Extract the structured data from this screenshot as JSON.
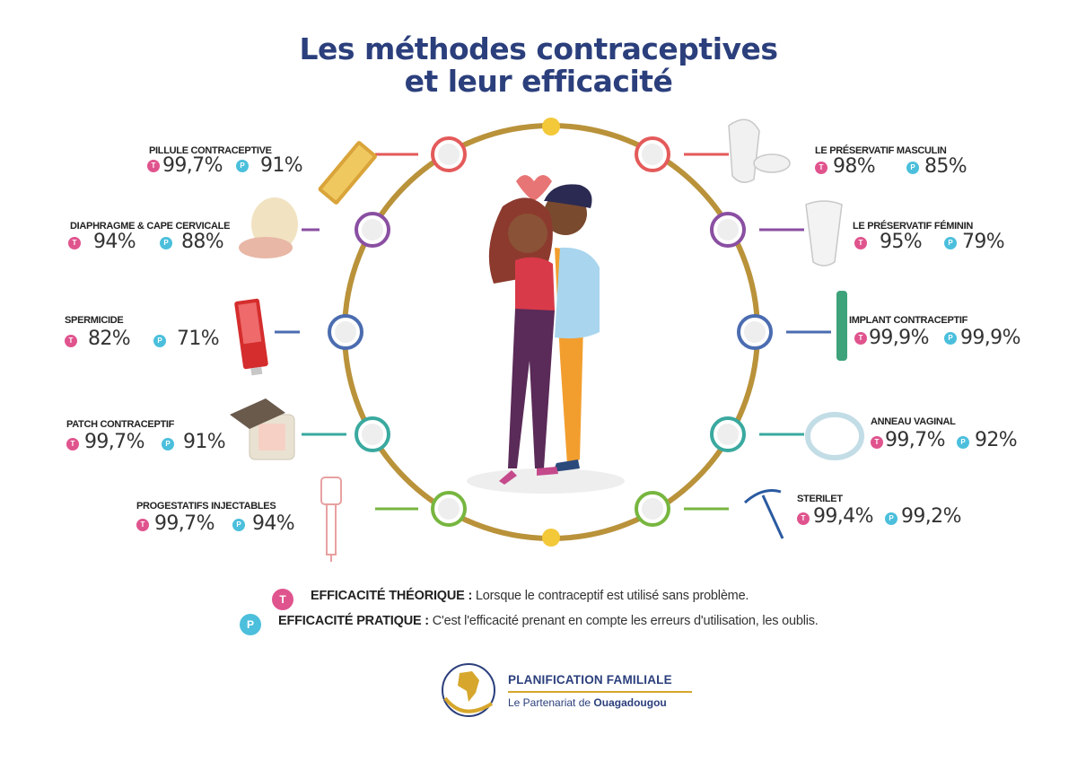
{
  "title": {
    "line1": "Les méthodes contraceptives",
    "line2": "et leur efficacité"
  },
  "badge_letters": {
    "theoretical": "T",
    "practical": "P"
  },
  "colors": {
    "title": "#2b3f7c",
    "ring": "#b9923a",
    "theoretical_badge": "#e0548e",
    "practical_badge": "#4bbfdc"
  },
  "methods": [
    {
      "name": "PILLULE CONTRACEPTIVE",
      "theoretical": "99,7%",
      "practical": "91%",
      "ring_color": "#e45a5a",
      "icon": "pill-pack-icon"
    },
    {
      "name": "DIAPHRAGME & CAPE CERVICALE",
      "theoretical": "94%",
      "practical": "88%",
      "ring_color": "#8a4fa2",
      "icon": "diaphragm-icon"
    },
    {
      "name": "SPERMICIDE",
      "theoretical": "82%",
      "practical": "71%",
      "ring_color": "#4b6cb0",
      "icon": "spermicide-tube-icon"
    },
    {
      "name": "PATCH CONTRACEPTIF",
      "theoretical": "99,7%",
      "practical": "91%",
      "ring_color": "#3aa99f",
      "icon": "patch-icon"
    },
    {
      "name": "PROGESTATIFS INJECTABLES",
      "theoretical": "99,7%",
      "practical": "94%",
      "ring_color": "#77b63f",
      "icon": "syringe-icon"
    },
    {
      "name": "LE PRÉSERVATIF MASCULIN",
      "theoretical": "98%",
      "practical": "85%",
      "ring_color": "#e45a5a",
      "icon": "male-condom-icon"
    },
    {
      "name": "LE PRÉSERVATIF FÉMININ",
      "theoretical": "95%",
      "practical": "79%",
      "ring_color": "#8a4fa2",
      "icon": "female-condom-icon"
    },
    {
      "name": "IMPLANT CONTRACEPTIF",
      "theoretical": "99,9%",
      "practical": "99,9%",
      "ring_color": "#4b6cb0",
      "icon": "implant-rod-icon"
    },
    {
      "name": "ANNEAU VAGINAL",
      "theoretical": "99,7%",
      "practical": "92%",
      "ring_color": "#3aa99f",
      "icon": "vaginal-ring-icon"
    },
    {
      "name": "STERILET",
      "theoretical": "99,4%",
      "practical": "99,2%",
      "ring_color": "#77b63f",
      "icon": "iud-icon"
    }
  ],
  "legend": {
    "theoretical_label": "EFFICACITÉ THÉORIQUE :",
    "theoretical_text": "Lorsque le contraceptif est utilisé sans problème.",
    "practical_label": "EFFICACITÉ PRATIQUE :",
    "practical_text": "C'est l'efficacité prenant en compte les erreurs d'utilisation, les oublis."
  },
  "logo": {
    "main": "PLANIFICATION FAMILIALE",
    "sub_prefix": "Le Partenariat de",
    "sub_bold": "Ouagadougou"
  }
}
